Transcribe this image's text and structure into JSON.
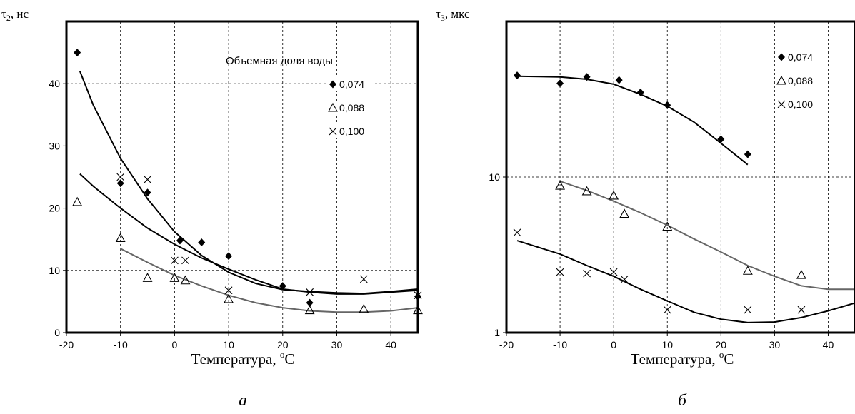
{
  "chart_data": [
    {
      "type": "scatter",
      "panel_label": "а",
      "title": "",
      "ylabel": {
        "main": "τ",
        "sub": "2",
        "rest": ", нс"
      },
      "xlabel": {
        "main": "Температура, ",
        "sup": "o",
        "rest": "C"
      },
      "xlim": [
        -20,
        45
      ],
      "ylim": [
        0,
        50
      ],
      "xticks": [
        "-20",
        "-10",
        "0",
        "10",
        "20",
        "30",
        "40"
      ],
      "yticks": [
        "0",
        "10",
        "20",
        "30",
        "40"
      ],
      "ytick_values": [
        0,
        10,
        20,
        30,
        40
      ],
      "grid": true,
      "legend_title": "Объемная доля воды",
      "legend_position": "top-right",
      "series": [
        {
          "name": "0,074",
          "marker": "diamond",
          "color": "#000000",
          "points": [
            [
              -18,
              45
            ],
            [
              -10,
              24
            ],
            [
              -5,
              22.5
            ],
            [
              1,
              14.8
            ],
            [
              5,
              14.5
            ],
            [
              10,
              12.3
            ],
            [
              20,
              7.5
            ],
            [
              25,
              4.8
            ],
            [
              45,
              5.8
            ]
          ],
          "fit": [
            [
              -17.5,
              42
            ],
            [
              -15,
              36.5
            ],
            [
              -10,
              28
            ],
            [
              -5,
              21.5
            ],
            [
              0,
              16.2
            ],
            [
              5,
              12.4
            ],
            [
              10,
              9.7
            ],
            [
              15,
              7.9
            ],
            [
              20,
              6.9
            ],
            [
              25,
              6.6
            ],
            [
              30,
              6.4
            ],
            [
              35,
              6.3
            ],
            [
              40,
              6.6
            ],
            [
              45,
              7
            ]
          ]
        },
        {
          "name": "0,088",
          "marker": "triangle",
          "color": "#000000",
          "points": [
            [
              -18,
              21
            ],
            [
              -10,
              15.2
            ],
            [
              -5,
              8.8
            ],
            [
              0,
              8.8
            ],
            [
              2,
              8.4
            ],
            [
              10,
              5.4
            ],
            [
              25,
              3.6
            ],
            [
              35,
              3.8
            ],
            [
              45,
              3.6
            ]
          ],
          "fit": [
            [
              -10,
              13.5
            ],
            [
              -5,
              11.3
            ],
            [
              0,
              9.2
            ],
            [
              5,
              7.5
            ],
            [
              10,
              6
            ],
            [
              15,
              4.8
            ],
            [
              20,
              4
            ],
            [
              25,
              3.5
            ],
            [
              30,
              3.3
            ],
            [
              35,
              3.3
            ],
            [
              40,
              3.5
            ],
            [
              45,
              4
            ]
          ]
        },
        {
          "name": "0,100",
          "marker": "x",
          "color": "#000000",
          "points": [
            [
              -10,
              25
            ],
            [
              -5,
              24.6
            ],
            [
              0,
              11.6
            ],
            [
              2,
              11.6
            ],
            [
              10,
              6.8
            ],
            [
              25,
              6.5
            ],
            [
              35,
              8.6
            ],
            [
              45,
              6
            ]
          ],
          "fit": [
            [
              -17.5,
              25.5
            ],
            [
              -15,
              23.5
            ],
            [
              -10,
              20
            ],
            [
              -5,
              16.8
            ],
            [
              0,
              14.2
            ],
            [
              5,
              12
            ],
            [
              10,
              10.2
            ],
            [
              15,
              8.5
            ],
            [
              20,
              7
            ],
            [
              25,
              6.5
            ],
            [
              30,
              6.2
            ],
            [
              35,
              6.2
            ],
            [
              40,
              6.5
            ],
            [
              45,
              6.8
            ]
          ]
        }
      ]
    },
    {
      "type": "scatter",
      "panel_label": "б",
      "title": "",
      "ylabel": {
        "main": "τ",
        "sub": "3",
        "rest": ", мкс"
      },
      "xlabel": {
        "main": "Температура, ",
        "sup": "o",
        "rest": "C"
      },
      "xlim": [
        -20,
        45
      ],
      "ylim": [
        1,
        100
      ],
      "yscale": "log",
      "xticks": [
        "-20",
        "-10",
        "0",
        "10",
        "20",
        "30",
        "40"
      ],
      "yticks": [
        "1",
        "10"
      ],
      "ytick_values": [
        1,
        10
      ],
      "grid": true,
      "legend_position": "top-right",
      "series": [
        {
          "name": "0,074",
          "marker": "diamond",
          "color": "#000000",
          "points": [
            [
              -18,
              45
            ],
            [
              -10,
              40
            ],
            [
              -5,
              44
            ],
            [
              1,
              42
            ],
            [
              5,
              35
            ],
            [
              10,
              29
            ],
            [
              20,
              17.5
            ],
            [
              25,
              14
            ]
          ],
          "fit": [
            [
              -18,
              44.5
            ],
            [
              -10,
              44
            ],
            [
              -5,
              42.5
            ],
            [
              0,
              39.5
            ],
            [
              5,
              34
            ],
            [
              10,
              28.5
            ],
            [
              15,
              22.5
            ],
            [
              20,
              16.5
            ],
            [
              25,
              12
            ]
          ]
        },
        {
          "name": "0,088",
          "marker": "triangle",
          "color": "#000000",
          "points": [
            [
              -10,
              8.8
            ],
            [
              -5,
              8.1
            ],
            [
              0,
              7.6
            ],
            [
              2,
              5.8
            ],
            [
              10,
              4.8
            ],
            [
              25,
              2.5
            ],
            [
              35,
              2.35
            ]
          ],
          "fit": [
            [
              -10,
              9.4
            ],
            [
              -5,
              8.2
            ],
            [
              0,
              7
            ],
            [
              5,
              5.9
            ],
            [
              10,
              4.9
            ],
            [
              15,
              4
            ],
            [
              20,
              3.3
            ],
            [
              25,
              2.7
            ],
            [
              30,
              2.3
            ],
            [
              35,
              2
            ],
            [
              40,
              1.9
            ],
            [
              45,
              1.9
            ]
          ]
        },
        {
          "name": "0,100",
          "marker": "x",
          "color": "#000000",
          "points": [
            [
              -18,
              4.4
            ],
            [
              -10,
              2.45
            ],
            [
              -5,
              2.4
            ],
            [
              0,
              2.45
            ],
            [
              2,
              2.2
            ],
            [
              10,
              1.4
            ],
            [
              25,
              1.4
            ],
            [
              35,
              1.4
            ]
          ],
          "fit": [
            [
              -18,
              3.9
            ],
            [
              -10,
              3.2
            ],
            [
              -5,
              2.7
            ],
            [
              0,
              2.3
            ],
            [
              5,
              1.9
            ],
            [
              10,
              1.6
            ],
            [
              15,
              1.35
            ],
            [
              20,
              1.22
            ],
            [
              25,
              1.16
            ],
            [
              30,
              1.17
            ],
            [
              35,
              1.25
            ],
            [
              40,
              1.38
            ],
            [
              45,
              1.55
            ]
          ]
        }
      ]
    }
  ]
}
